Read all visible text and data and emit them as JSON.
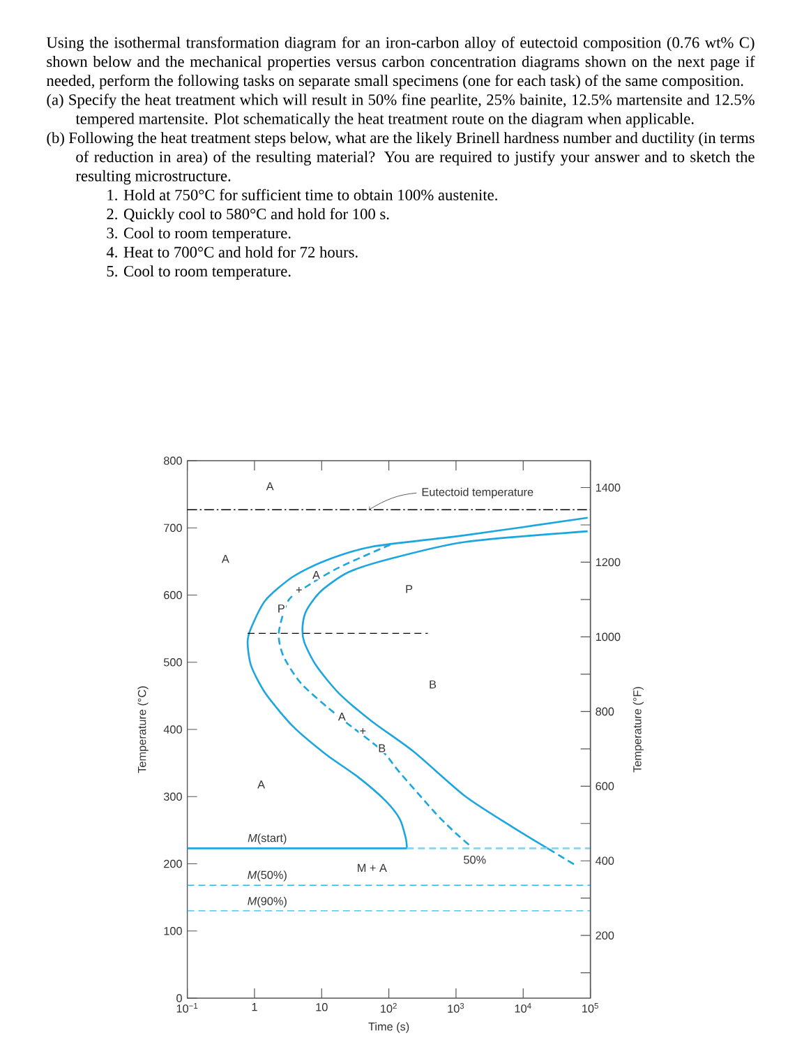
{
  "chart_data": {
    "type": "line",
    "xlabel": "Time (s)",
    "ylabel": "Temperature (°C)",
    "y2label": "Temperature (°F)",
    "log": "x",
    "xlim": [
      0.1,
      100000
    ],
    "ylim": [
      0,
      800
    ],
    "y2lim": [
      32,
      1472
    ],
    "xticks": [
      {
        "value": 0.1,
        "label": "10$^{−1}$"
      },
      1,
      10,
      {
        "value": 100,
        "label": "10$^{2}$"
      },
      {
        "value": 1000,
        "label": "10$^{3}$"
      },
      {
        "value": 10000,
        "label": "10$^{4}$"
      },
      {
        "value": 100000,
        "label": "10$^{5}$"
      }
    ],
    "yticks": [
      0,
      100,
      200,
      300,
      400,
      500,
      600,
      700,
      800
    ],
    "y2ticks": [
      {
        "value": 100,
        "label": null
      },
      200,
      {
        "value": 300,
        "label": null
      },
      400,
      {
        "value": 500,
        "label": null
      },
      600,
      {
        "value": 700,
        "label": null
      },
      800,
      {
        "value": 900,
        "label": null
      },
      1000,
      {
        "value": 1100,
        "label": null
      },
      1200,
      {
        "value": 1300,
        "label": null
      },
      1400
    ],
    "series": [
      {
        "color": "#1BA6E0",
        "line_style": "solid",
        "x": [
          91000,
          1350,
          56,
          11.2,
          3.7,
          1.45,
          0.89,
          0.79,
          0.89,
          1.45,
          3.7,
          11.2,
          35,
          89,
          145,
          178,
          186
        ],
        "values": [
          715,
          689,
          672,
          651,
          627,
          592,
          551,
          530,
          495,
          454,
          405,
          364,
          329,
          294,
          267,
          239,
          223
        ]
      },
      {
        "color": "#1BA6E0",
        "line_style": "dashed",
        "x": [
          105,
          18,
          6.0,
          3.2,
          2.3,
          2.7,
          5.1,
          18,
          76,
          145,
          510,
          980,
          1700
        ],
        "values": [
          675,
          641,
          613,
          592,
          544,
          509,
          467,
          419,
          370,
          336,
          274,
          246,
          225
        ]
      },
      {
        "color": "#1BA6E0",
        "line_style": "solid",
        "x": [
          91000,
          1350,
          105,
          25,
          9.8,
          6.0,
          5.2,
          5.5,
          8.3,
          18,
          56,
          234,
          1350,
          6600,
          24000
        ],
        "values": [
          695,
          679,
          654,
          634,
          606,
          578,
          554,
          530,
          495,
          454,
          412,
          367,
          301,
          256,
          222
        ]
      },
      {
        "color": "#1BA6E0",
        "line_style": "dashed",
        "x": [
          24000,
          62000
        ],
        "values": [
          222,
          197
        ]
      },
      {
        "color": "#1BA6E0",
        "line_style": "solid",
        "x": [
          0.1,
          186
        ],
        "values": [
          223,
          223
        ]
      },
      {
        "color": "#8AD3EE",
        "line_style": "dashed",
        "x": [
          186,
          100000
        ],
        "values": [
          223,
          223
        ]
      },
      {
        "color": "#000000",
        "line_style": "dashed",
        "x": [
          0.79,
          380
        ],
        "values": [
          543,
          543
        ]
      }
    ],
    "ref_lines": [
      {
        "axis": "y",
        "value": 727,
        "label": "Eutectoid temperature",
        "color": "#000000",
        "line_style": "dashdot"
      },
      {
        "axis": "y",
        "value": 168,
        "color": "#35B6E8",
        "line_style": "dashed"
      },
      {
        "axis": "y",
        "value": 130,
        "color": "#35B6E8",
        "line_style": "dashed"
      }
    ],
    "annotations": [
      "Using the isothermal transformation diagram for an iron-carbon alloy of eutectoid composition (0.76 wt% C) shown below and the mechanical properties versus carbon concentration diagrams shown on the next page if needed, perform the following tasks on separate small specimens (one for each task) of the same composition.",
      "(a) Specify the heat treatment which will result in 50% fine pearlite, 25% bainite, 12.5% martensite and 12.5% tempered martensite.  Plot schematically the heat treatment route on the diagram when applicable.",
      "(b) Following the heat treatment steps below, what are the likely Brinell hardness number and ductility (in terms of reduction in area) of the resulting material? You are required to justify your answer and to sketch the resulting microstructure.",
      "1. Hold at 750°C for sufficient time to obtain 100% austenite.",
      "2. Quickly cool to 580°C and hold for 100 s.",
      "3. Cool to room temperature.",
      "4. Heat to 700°C and hold for 72 hours.",
      "5. Cool to room temperature.",
      "A",
      "A",
      "P",
      "B",
      "A",
      "*M*(start)",
      "M + A",
      "50%",
      "*M*(50%)",
      "*M*(90%)",
      {
        "text": "A",
        "x": 8.3,
        "y": 630
      },
      {
        "text": "+",
        "x": 4.6,
        "y": 607
      },
      {
        "text": "P",
        "x": 2.5,
        "y": 580
      },
      {
        "text": "A",
        "x": 20,
        "y": 419
      },
      {
        "text": "+",
        "x": 41,
        "y": 397
      },
      {
        "text": "B",
        "x": 79,
        "y": 372
      }
    ]
  }
}
